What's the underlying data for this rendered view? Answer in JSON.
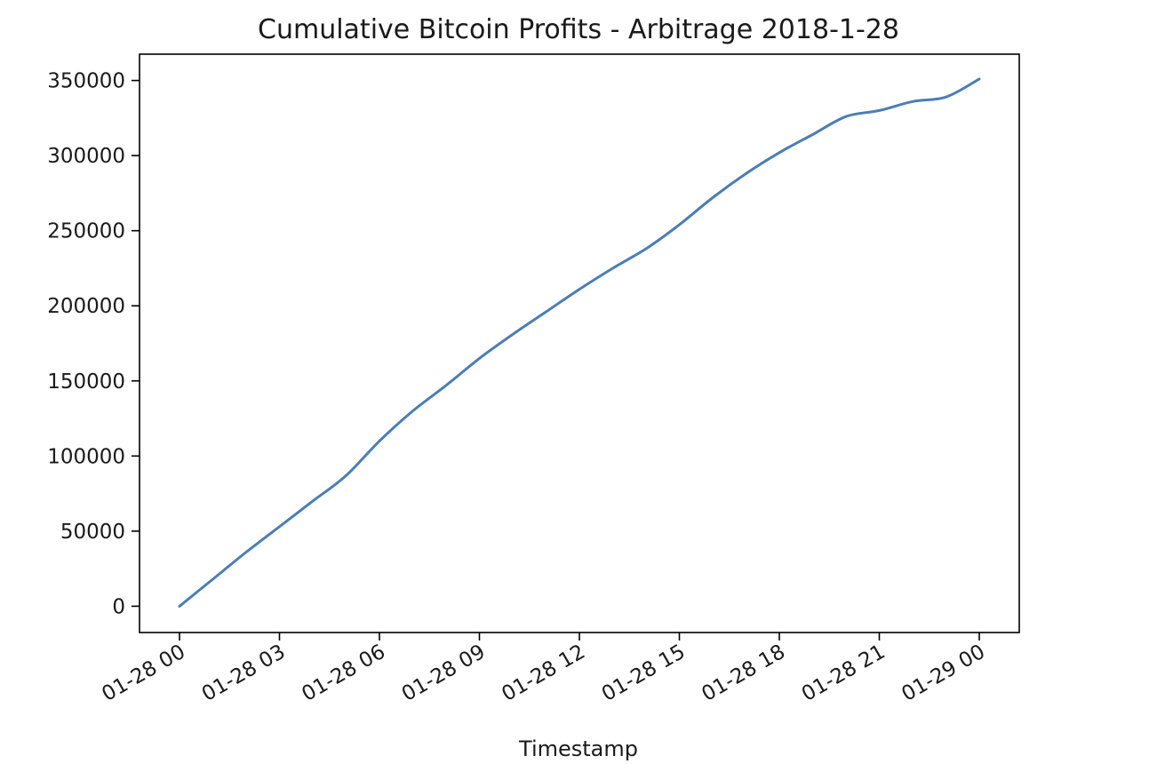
{
  "chart_data": {
    "type": "line",
    "title": "Cumulative Bitcoin Profits - Arbitrage 2018-1-28",
    "xlabel": "Timestamp",
    "ylabel": "",
    "x_ticks": [
      "2018-01-28T00:00",
      "2018-01-28T03:00",
      "2018-01-28T06:00",
      "2018-01-28T09:00",
      "2018-01-28T12:00",
      "2018-01-28T15:00",
      "2018-01-28T18:00",
      "2018-01-28T21:00",
      "2018-01-29T00:00"
    ],
    "x_tick_labels": [
      "01-28 00",
      "01-28 03",
      "01-28 06",
      "01-28 09",
      "01-28 12",
      "01-28 15",
      "01-28 18",
      "01-28 21",
      "01-29 00"
    ],
    "xlim": [
      "2018-01-27T22:48",
      "2018-01-29T01:12"
    ],
    "y_ticks": [
      0,
      50000,
      100000,
      150000,
      200000,
      250000,
      300000,
      350000
    ],
    "y_tick_labels": [
      "0",
      "50000",
      "100000",
      "150000",
      "200000",
      "250000",
      "300000",
      "350000"
    ],
    "ylim": [
      -17500,
      367500
    ],
    "grid": false,
    "legend": "none",
    "line_color": "#4a7db8",
    "series": [
      {
        "x": [
          "2018-01-28T00:00",
          "2018-01-28T01:00",
          "2018-01-28T02:00",
          "2018-01-28T03:00",
          "2018-01-28T04:00",
          "2018-01-28T05:00",
          "2018-01-28T06:00",
          "2018-01-28T07:00",
          "2018-01-28T08:00",
          "2018-01-28T09:00",
          "2018-01-28T10:00",
          "2018-01-28T11:00",
          "2018-01-28T12:00",
          "2018-01-28T13:00",
          "2018-01-28T14:00",
          "2018-01-28T15:00",
          "2018-01-28T16:00",
          "2018-01-28T17:00",
          "2018-01-28T18:00",
          "2018-01-28T19:00",
          "2018-01-28T20:00",
          "2018-01-28T21:00",
          "2018-01-28T22:00",
          "2018-01-28T23:00",
          "2018-01-29T00:00"
        ],
        "y": [
          0,
          18000,
          36000,
          53000,
          70000,
          87000,
          110000,
          130000,
          147000,
          165000,
          181000,
          196000,
          211000,
          225000,
          238000,
          254000,
          272000,
          288000,
          302000,
          314000,
          326000,
          330000,
          336000,
          339000,
          351000
        ]
      }
    ]
  }
}
